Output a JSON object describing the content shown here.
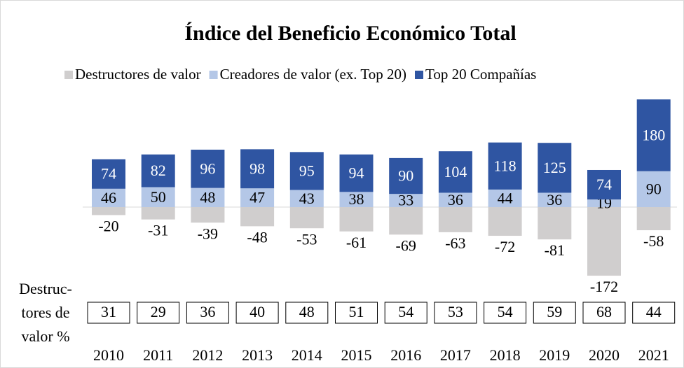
{
  "chart_data": {
    "type": "bar",
    "stacked": true,
    "title": "Índice del Beneficio Económico Total",
    "categories": [
      "2010",
      "2011",
      "2012",
      "2013",
      "2014",
      "2015",
      "2016",
      "2017",
      "2018",
      "2019",
      "2020",
      "2021"
    ],
    "series": [
      {
        "name": "Destructores de valor",
        "color": "#d0cece",
        "values": [
          -20,
          -31,
          -39,
          -48,
          -53,
          -61,
          -69,
          -63,
          -72,
          -81,
          -172,
          -58
        ]
      },
      {
        "name": "Creadores de valor (ex. Top 20)",
        "color": "#b4c7e7",
        "values": [
          46,
          50,
          48,
          47,
          43,
          38,
          33,
          36,
          44,
          36,
          19,
          90
        ]
      },
      {
        "name": "Top 20 Compañías",
        "color": "#2f55a2",
        "values": [
          74,
          82,
          96,
          98,
          95,
          94,
          90,
          104,
          118,
          125,
          74,
          180
        ]
      }
    ],
    "ylim": [
      -190,
      290
    ],
    "legend": "top"
  },
  "table": {
    "label_lines": [
      "Destruc-",
      "tores de",
      "valor %"
    ],
    "values": [
      31,
      29,
      36,
      40,
      48,
      51,
      54,
      53,
      54,
      59,
      68,
      44
    ]
  }
}
